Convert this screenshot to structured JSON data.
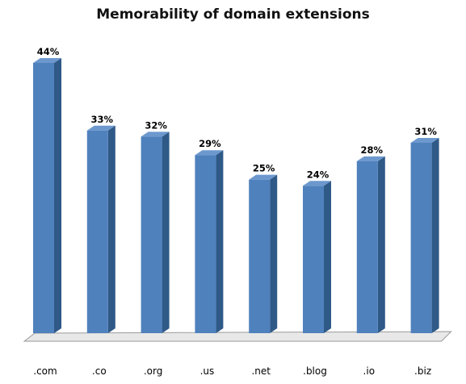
{
  "chart_data": {
    "type": "bar",
    "title": "Memorability of domain extensions",
    "xlabel": "",
    "ylabel": "",
    "categories": [
      ".com",
      ".co",
      ".org",
      ".us",
      ".net",
      ".blog",
      ".io",
      ".biz"
    ],
    "values": [
      44,
      33,
      32,
      29,
      25,
      24,
      28,
      31
    ],
    "value_suffix": "%",
    "ylim": [
      0,
      44
    ],
    "grid": false,
    "legend": "none",
    "style": "3d-column",
    "colors": {
      "bar_front": "#4F81BD",
      "bar_side": "#2F5987",
      "bar_top": "#6C98CE",
      "floor": "#E8E8E8"
    }
  }
}
